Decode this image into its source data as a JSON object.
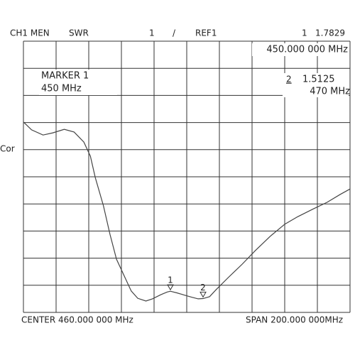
{
  "chart_data": {
    "type": "line",
    "channel": "CH1 MEN",
    "format": "SWR",
    "scale_label": "1",
    "slash": "/",
    "reference": "REF1",
    "side_label": "Cor",
    "active_marker": {
      "title": "MARKER  1",
      "frequency": "450 MHz"
    },
    "center": "CENTER 460.000 000 MHz",
    "span": "SPAN 200.000 000MHz",
    "markers": [
      {
        "label": "1",
        "x": 450,
        "y": 1.7829,
        "x_label": "450.000 000 MHz"
      },
      {
        "label": "2",
        "x": 470,
        "y": 1.5125,
        "x_label": "470 MHz"
      }
    ],
    "x": [
      360,
      365,
      372,
      378,
      385,
      391,
      397,
      401,
      404,
      409,
      413,
      417,
      422,
      426,
      430,
      435,
      439,
      444,
      448,
      450,
      454,
      459,
      463,
      467,
      470,
      474,
      478,
      485,
      494,
      502,
      511,
      520,
      528,
      537,
      546,
      554,
      560
    ],
    "series": [
      {
        "color": "#444444",
        "values": [
          8.02,
          7.73,
          7.54,
          7.62,
          7.75,
          7.65,
          7.28,
          6.76,
          5.97,
          4.93,
          3.88,
          2.96,
          2.31,
          1.79,
          1.52,
          1.42,
          1.5,
          1.65,
          1.75,
          1.78,
          1.72,
          1.63,
          1.56,
          1.5,
          1.51,
          1.58,
          1.84,
          2.26,
          2.78,
          3.28,
          3.8,
          4.25,
          4.53,
          4.8,
          5.06,
          5.35,
          5.55
        ]
      }
    ],
    "xlim": [
      360,
      560
    ],
    "ylim": [
      1,
      11
    ],
    "xticks": [
      360,
      380,
      400,
      420,
      440,
      460,
      480,
      500,
      520,
      540,
      560
    ],
    "yticks": [
      1,
      2,
      3,
      4,
      5,
      6,
      7,
      8,
      9,
      10,
      11
    ],
    "grid": true
  }
}
